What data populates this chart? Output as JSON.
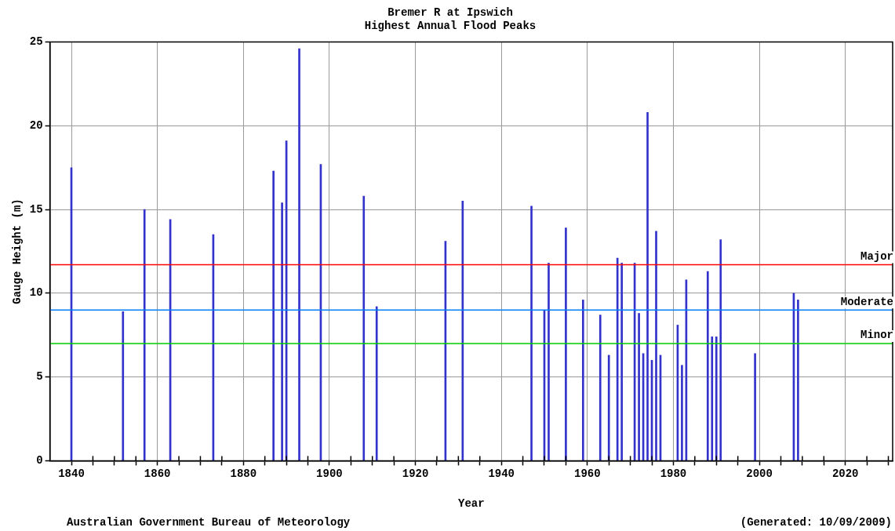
{
  "chart_data": {
    "type": "bar",
    "title": "Bremer R at Ipswich",
    "subtitle": "Highest Annual Flood Peaks",
    "xlabel": "Year",
    "ylabel": "Gauge Height (m)",
    "x": [
      1840,
      1852,
      1857,
      1863,
      1873,
      1887,
      1889,
      1890,
      1893,
      1898,
      1908,
      1911,
      1927,
      1931,
      1947,
      1950,
      1951,
      1955,
      1959,
      1963,
      1965,
      1967,
      1968,
      1971,
      1972,
      1973,
      1974,
      1975,
      1976,
      1977,
      1981,
      1982,
      1983,
      1988,
      1989,
      1990,
      1991,
      1999,
      2008,
      2009
    ],
    "values": [
      17.5,
      8.9,
      15.0,
      14.4,
      13.5,
      17.3,
      15.4,
      19.1,
      24.6,
      17.7,
      15.8,
      9.2,
      13.1,
      15.5,
      15.2,
      9.0,
      11.8,
      13.9,
      9.6,
      8.7,
      6.3,
      12.1,
      11.8,
      11.8,
      8.8,
      6.4,
      20.8,
      6.0,
      13.7,
      6.3,
      8.1,
      5.7,
      10.8,
      11.3,
      7.4,
      7.4,
      13.2,
      6.4,
      10.0,
      9.6
    ],
    "color": "#3333cc",
    "xlim": [
      1835,
      2031
    ],
    "xticks": [
      1840,
      {
        "value": 1845,
        "label": null
      },
      {
        "value": 1850,
        "label": null
      },
      {
        "value": 1855,
        "label": null
      },
      1860,
      {
        "value": 1865,
        "label": null
      },
      {
        "value": 1870,
        "label": null
      },
      {
        "value": 1875,
        "label": null
      },
      1880,
      {
        "value": 1885,
        "label": null
      },
      {
        "value": 1890,
        "label": null
      },
      {
        "value": 1895,
        "label": null
      },
      1900,
      {
        "value": 1905,
        "label": null
      },
      {
        "value": 1910,
        "label": null
      },
      {
        "value": 1915,
        "label": null
      },
      1920,
      {
        "value": 1925,
        "label": null
      },
      {
        "value": 1930,
        "label": null
      },
      {
        "value": 1935,
        "label": null
      },
      1940,
      {
        "value": 1945,
        "label": null
      },
      {
        "value": 1950,
        "label": null
      },
      {
        "value": 1955,
        "label": null
      },
      1960,
      {
        "value": 1965,
        "label": null
      },
      {
        "value": 1970,
        "label": null
      },
      {
        "value": 1975,
        "label": null
      },
      1980,
      {
        "value": 1985,
        "label": null
      },
      {
        "value": 1990,
        "label": null
      },
      {
        "value": 1995,
        "label": null
      },
      2000,
      {
        "value": 2005,
        "label": null
      },
      {
        "value": 2010,
        "label": null
      },
      {
        "value": 2015,
        "label": null
      },
      2020,
      {
        "value": 2025,
        "label": null
      },
      {
        "value": 2030,
        "label": null
      }
    ],
    "ylim": [
      0,
      25
    ],
    "yticks": [
      0,
      5,
      10,
      15,
      20,
      25
    ],
    "grid": true,
    "ref_lines": [
      {
        "axis": "y",
        "value": 11.7,
        "label": "Major",
        "color": "#ff0000"
      },
      {
        "axis": "y",
        "value": 9.0,
        "label": "Moderate",
        "color": "#0080ff"
      },
      {
        "axis": "y",
        "value": 7.0,
        "label": "Minor",
        "color": "#00cc00"
      }
    ],
    "annotations": [
      "Australian Government Bureau of Meteorology",
      "(Generated: 10/09/2009)"
    ]
  }
}
